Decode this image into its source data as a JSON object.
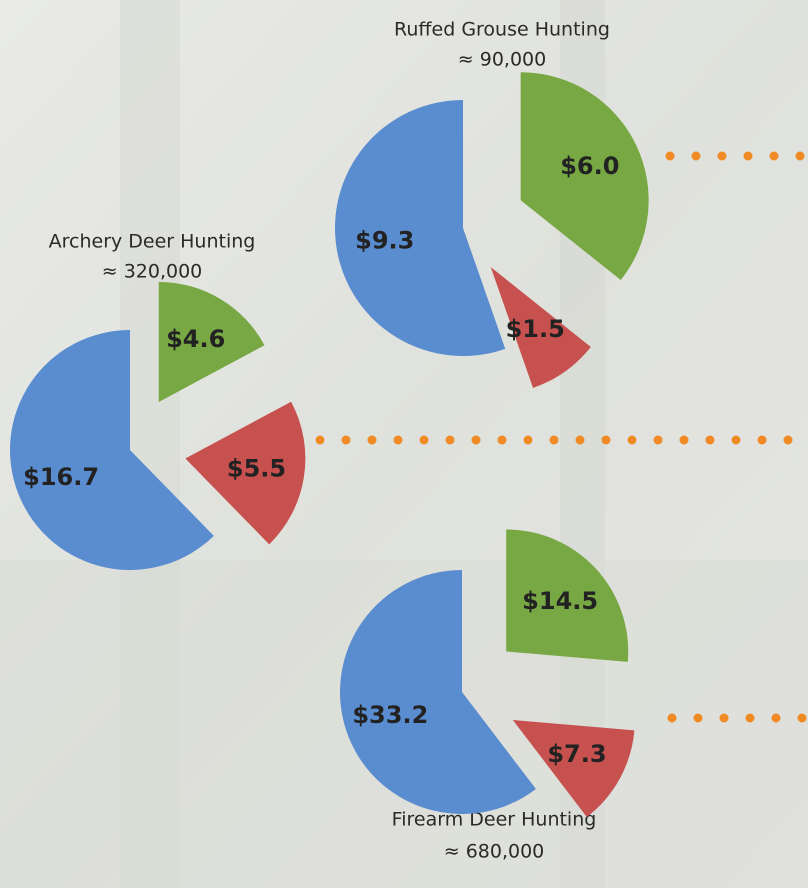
{
  "chart_data": [
    {
      "type": "pie",
      "title": "Ruffed Grouse Hunting",
      "subtitle": "≈ 90,000",
      "values": [
        6.0,
        1.5,
        9.3
      ],
      "value_labels": [
        "$6.0",
        "$1.5",
        "$9.3"
      ],
      "colors": [
        "#78a843",
        "#c7514e",
        "#5a8dcf"
      ]
    },
    {
      "type": "pie",
      "title": "Archery Deer Hunting",
      "subtitle": "≈ 320,000",
      "values": [
        4.6,
        5.5,
        16.7
      ],
      "value_labels": [
        "$4.6",
        "$5.5",
        "$16.7"
      ],
      "colors": [
        "#78a843",
        "#c7514e",
        "#5a8dcf"
      ]
    },
    {
      "type": "pie",
      "title": "Firearm Deer Hunting",
      "subtitle": "≈ 680,000",
      "values": [
        14.5,
        7.3,
        33.2
      ],
      "value_labels": [
        "$14.5",
        "$7.3",
        "$33.2"
      ],
      "colors": [
        "#78a843",
        "#c7514e",
        "#5a8dcf"
      ]
    }
  ]
}
